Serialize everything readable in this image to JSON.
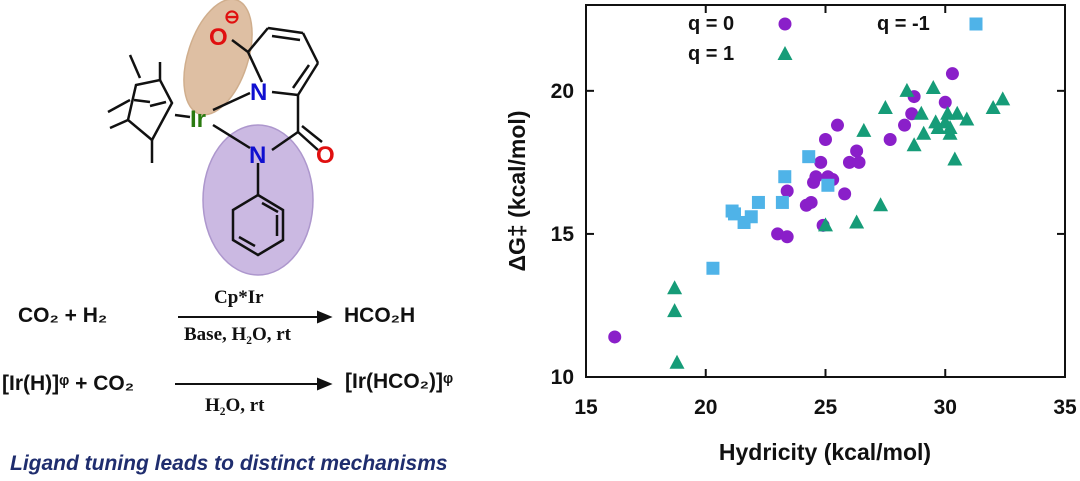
{
  "scheme": {
    "labels": {
      "O_minus": "O",
      "charge": "⊖",
      "N_pyr": "N",
      "Ir": "Ir",
      "N_amide": "N",
      "O_carbonyl": "O"
    },
    "rxn1": {
      "left": "CO₂ + H₂",
      "above": "Cp*Ir",
      "below": "Base, H₂O, rt",
      "right": "HCO₂H"
    },
    "rxn2": {
      "left": "[Ir(H)]ᵠ + CO₂",
      "below": "H₂O, rt",
      "right": "[Ir(HCO₂)]ᵠ"
    }
  },
  "caption": "Ligand tuning leads to distinct mechanisms",
  "colors": {
    "q0": "#8a1fc9",
    "q1": "#169c78",
    "qm1": "#4fb3e8",
    "caption": "#1f2d6e",
    "O": "#e01010",
    "N": "#1010d0",
    "Ir": "#2a7a10",
    "orange_ellipse": "#d9b593",
    "purple_ellipse": "#c6b2df"
  },
  "chart_data": {
    "type": "scatter",
    "xlabel": "Hydricity (kcal/mol)",
    "ylabel": "ΔG‡ (kcal/mol)",
    "xlim": [
      15,
      35
    ],
    "ylim": [
      10,
      23
    ],
    "xticks": [
      "15",
      "20",
      "25",
      "30",
      "35"
    ],
    "yticks": [
      "10",
      "15",
      "20"
    ],
    "legend_position": "top",
    "series": [
      {
        "name": "q = 0",
        "marker": "circle",
        "color": "#8a1fc9",
        "points": [
          [
            16.2,
            11.4
          ],
          [
            23.0,
            15.0
          ],
          [
            23.4,
            14.9
          ],
          [
            23.4,
            16.5
          ],
          [
            24.2,
            16.0
          ],
          [
            24.4,
            16.1
          ],
          [
            24.5,
            16.8
          ],
          [
            24.6,
            17.0
          ],
          [
            24.8,
            17.5
          ],
          [
            24.9,
            15.3
          ],
          [
            25.0,
            18.3
          ],
          [
            25.1,
            17.0
          ],
          [
            25.3,
            16.9
          ],
          [
            25.5,
            18.8
          ],
          [
            25.8,
            16.4
          ],
          [
            26.0,
            17.5
          ],
          [
            26.3,
            17.9
          ],
          [
            26.4,
            17.5
          ],
          [
            27.7,
            18.3
          ],
          [
            28.3,
            18.8
          ],
          [
            28.6,
            19.2
          ],
          [
            28.7,
            19.8
          ],
          [
            30.3,
            20.6
          ],
          [
            30.0,
            19.6
          ]
        ]
      },
      {
        "name": "q = 1",
        "marker": "triangle",
        "color": "#169c78",
        "points": [
          [
            18.7,
            13.1
          ],
          [
            18.7,
            12.3
          ],
          [
            18.8,
            10.5
          ],
          [
            25.0,
            15.3
          ],
          [
            26.3,
            15.4
          ],
          [
            26.6,
            18.6
          ],
          [
            27.3,
            16.0
          ],
          [
            27.5,
            19.4
          ],
          [
            28.4,
            20.0
          ],
          [
            28.7,
            18.1
          ],
          [
            29.0,
            19.2
          ],
          [
            29.1,
            18.5
          ],
          [
            29.5,
            20.1
          ],
          [
            29.6,
            18.9
          ],
          [
            29.7,
            18.7
          ],
          [
            30.0,
            18.9
          ],
          [
            30.1,
            19.2
          ],
          [
            30.2,
            18.7
          ],
          [
            30.2,
            18.5
          ],
          [
            30.4,
            17.6
          ],
          [
            30.5,
            19.2
          ],
          [
            30.9,
            19.0
          ],
          [
            32.0,
            19.4
          ],
          [
            32.4,
            19.7
          ]
        ]
      },
      {
        "name": "q = -1",
        "marker": "square",
        "color": "#4fb3e8",
        "points": [
          [
            20.3,
            13.8
          ],
          [
            21.1,
            15.8
          ],
          [
            21.2,
            15.7
          ],
          [
            21.6,
            15.4
          ],
          [
            21.9,
            15.6
          ],
          [
            22.2,
            16.1
          ],
          [
            23.2,
            16.1
          ],
          [
            23.3,
            17.0
          ],
          [
            24.3,
            17.7
          ],
          [
            25.1,
            16.7
          ]
        ]
      }
    ]
  }
}
